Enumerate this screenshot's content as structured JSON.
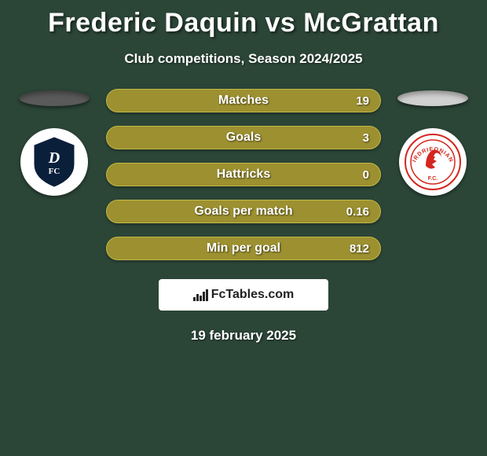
{
  "title": "Frederic Daquin vs McGrattan",
  "subtitle": "Club competitions, Season 2024/2025",
  "colors": {
    "background": "#2b4537",
    "bar_fill": "#9c9030",
    "bar_border": "#c5b844",
    "left_ellipse": "#5a5a5a",
    "right_ellipse": "#d0d0d0",
    "badge_bg": "#ffffff"
  },
  "left_team": {
    "name": "Dundee FC",
    "badge_primary": "#0a1f3a",
    "badge_text": "DFC"
  },
  "right_team": {
    "name": "Airdrieonians",
    "badge_primary": "#d4261f",
    "badge_text": "AFC"
  },
  "stats": [
    {
      "label": "Matches",
      "value": "19"
    },
    {
      "label": "Goals",
      "value": "3"
    },
    {
      "label": "Hattricks",
      "value": "0"
    },
    {
      "label": "Goals per match",
      "value": "0.16"
    },
    {
      "label": "Min per goal",
      "value": "812"
    }
  ],
  "footer_brand": "FcTables.com",
  "footer_date": "19 february 2025"
}
